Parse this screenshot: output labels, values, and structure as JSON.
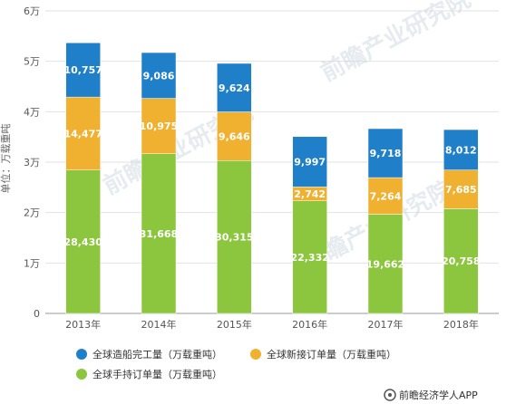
{
  "chart_data": {
    "type": "bar",
    "stacked": true,
    "categories": [
      "2013年",
      "2014年",
      "2015年",
      "2016年",
      "2017年",
      "2018年"
    ],
    "series": [
      {
        "name": "全球手持订单量（万载重吨）",
        "values": [
          28430,
          31668,
          30315,
          22332,
          19662,
          20758
        ],
        "labels": [
          "28,430",
          "31,668",
          "30,315",
          "22,332",
          "19,662",
          "20,758"
        ],
        "color": "#8cc63f"
      },
      {
        "name": "全球新接订单量（万载重吨）",
        "values": [
          14477,
          10975,
          9646,
          2742,
          7264,
          7685
        ],
        "labels": [
          "14,477",
          "10,975",
          "9,646",
          "2,742",
          "7,264",
          "7,685"
        ],
        "color": "#f0b030"
      },
      {
        "name": "全球造船完工量（万载重吨）",
        "values": [
          10757,
          9086,
          9624,
          9997,
          9718,
          8012
        ],
        "labels": [
          "10,757",
          "9,086",
          "9,624",
          "9,997",
          "9,718",
          "8,012"
        ],
        "color": "#1f7fc8"
      }
    ],
    "ylabel": "单位：万载重吨",
    "ylim": [
      0,
      60000
    ],
    "ytick_values": [
      0,
      10000,
      20000,
      30000,
      40000,
      50000,
      60000
    ],
    "ytick_labels": [
      "0",
      "1万",
      "2万",
      "3万",
      "4万",
      "5万",
      "6万"
    ],
    "grid": true,
    "legend_position": "bottom"
  },
  "legend_order": [
    2,
    1,
    0
  ],
  "watermark": {
    "text": "前瞻产业研究院"
  },
  "footer": {
    "text": "前瞻经济学人APP"
  }
}
